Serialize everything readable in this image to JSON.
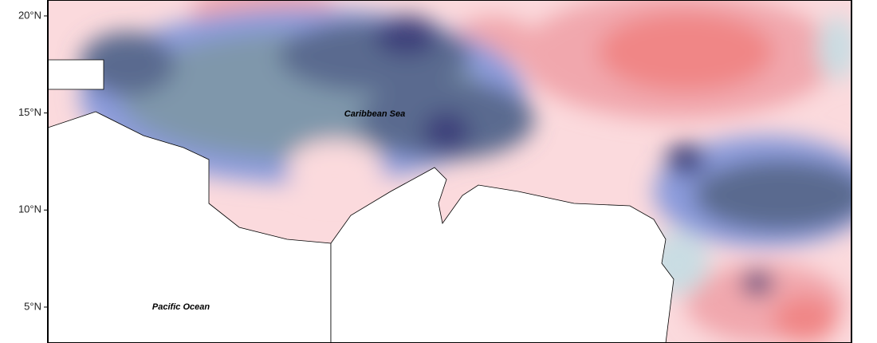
{
  "map": {
    "ylim": [
      3.15,
      20.82
    ],
    "yticks": [
      {
        "value": 20,
        "label": "20°N"
      },
      {
        "value": 15,
        "label": "15°N"
      },
      {
        "value": 10,
        "label": "10°N"
      },
      {
        "value": 5,
        "label": "5°N"
      }
    ],
    "labels": [
      "Caribbean Sea",
      "Pacific Ocean"
    ]
  }
}
